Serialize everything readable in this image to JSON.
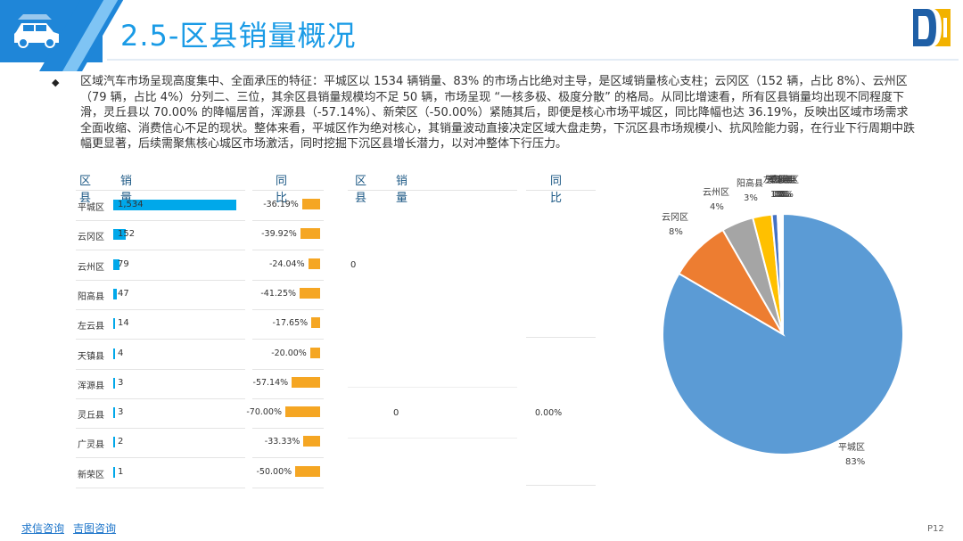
{
  "header": {
    "title": "2.5-区县销量概况",
    "accent": "#1f86d8"
  },
  "summary": {
    "bullet": "◆",
    "text": "区域汽车市场呈现高度集中、全面承压的特征：平城区以 1534 辆销量、83% 的市场占比绝对主导，是区域销量核心支柱；云冈区（152 辆，占比 8%）、云州区（79 辆，占比 4%）分列二、三位，其余区县销量规模均不足 50 辆，市场呈现 “一核多极、极度分散” 的格局。从同比增速看，所有区县销量均出现不同程度下滑，灵丘县以 70.00% 的降幅居首，浑源县（-57.14%）、新荣区（-50.00%）紧随其后，即便是核心市场平城区，同比降幅也达 36.19%，反映出区域市场需求全面收缩、消费信心不足的现状。整体来看，平城区作为绝对核心，其销量波动直接决定区域大盘走势，下沉区县市场规模小、抗风险能力弱，在行业下行周期中跌幅更显著，后续需聚焦核心城区市场激活，同时挖掘下沉区县增长潜力，以对冲整体下行压力。"
  },
  "table_left": {
    "col_district": "区县",
    "col_sales": "销量",
    "col_yoy": "同比",
    "rows": [
      {
        "name": "平城区",
        "sales": 1534,
        "sales_label": "1,534",
        "yoy": -36.19,
        "yoy_label": "-36.19%"
      },
      {
        "name": "云冈区",
        "sales": 152,
        "sales_label": "152",
        "yoy": -39.92,
        "yoy_label": "-39.92%"
      },
      {
        "name": "云州区",
        "sales": 79,
        "sales_label": "79",
        "yoy": -24.04,
        "yoy_label": "-24.04%"
      },
      {
        "name": "阳高县",
        "sales": 47,
        "sales_label": "47",
        "yoy": -41.25,
        "yoy_label": "-41.25%"
      },
      {
        "name": "左云县",
        "sales": 14,
        "sales_label": "14",
        "yoy": -17.65,
        "yoy_label": "-17.65%"
      },
      {
        "name": "天镇县",
        "sales": 4,
        "sales_label": "4",
        "yoy": -20.0,
        "yoy_label": "-20.00%"
      },
      {
        "name": "浑源县",
        "sales": 3,
        "sales_label": "3",
        "yoy": -57.14,
        "yoy_label": "-57.14%"
      },
      {
        "name": "灵丘县",
        "sales": 3,
        "sales_label": "3",
        "yoy": -70.0,
        "yoy_label": "-70.00%"
      },
      {
        "name": "广灵县",
        "sales": 2,
        "sales_label": "2",
        "yoy": -33.33,
        "yoy_label": "-33.33%"
      },
      {
        "name": "新荣区",
        "sales": 1,
        "sales_label": "1",
        "yoy": -50.0,
        "yoy_label": "-50.00%"
      }
    ]
  },
  "table_right": {
    "col_district": "区县",
    "col_sales": "销量",
    "col_yoy": "同比",
    "value_a": "0",
    "value_b": "0",
    "value_c": "0.00%"
  },
  "chart_data": {
    "type": "pie",
    "slices": [
      {
        "name": "平城区",
        "value": 1534,
        "pct_label": "83%",
        "color": "#5b9bd5"
      },
      {
        "name": "云冈区",
        "value": 152,
        "pct_label": "8%",
        "color": "#ed7d31"
      },
      {
        "name": "云州区",
        "value": 79,
        "pct_label": "4%",
        "color": "#a5a5a5"
      },
      {
        "name": "阳高县",
        "value": 47,
        "pct_label": "3%",
        "color": "#ffc000"
      },
      {
        "name": "左云县",
        "value": 14,
        "pct_label": "1%",
        "color": "#4472c4"
      },
      {
        "name": "天镇县",
        "value": 4,
        "pct_label": "0%",
        "color": "#70ad47"
      },
      {
        "name": "浑源县",
        "value": 3,
        "pct_label": "0%",
        "color": "#264478"
      },
      {
        "name": "灵丘县",
        "value": 3,
        "pct_label": "0%",
        "color": "#9e480e"
      },
      {
        "name": "广灵县",
        "value": 2,
        "pct_label": "0%",
        "color": "#636363"
      },
      {
        "name": "新荣区",
        "value": 1,
        "pct_label": "0%",
        "color": "#997300"
      }
    ]
  },
  "footer": {
    "link1": "求信咨询",
    "link2": "吉图咨询",
    "page": "P12"
  }
}
